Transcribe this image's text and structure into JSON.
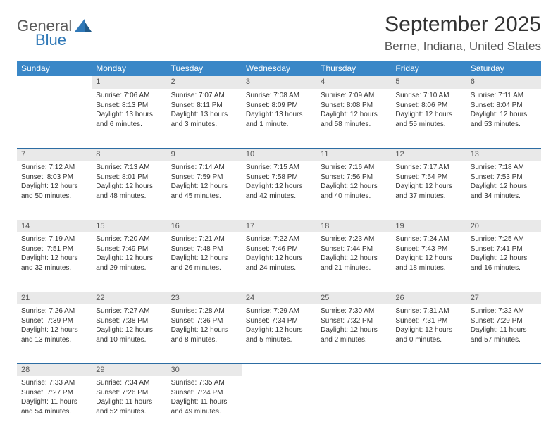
{
  "brand": {
    "word1": "General",
    "word2": "Blue"
  },
  "title": "September 2025",
  "location": "Berne, Indiana, United States",
  "colors": {
    "header_bg": "#3a87c7",
    "header_text": "#ffffff",
    "daynum_bg": "#e9e9e9",
    "row_border": "#2d6da3",
    "text": "#333333",
    "logo_gray": "#5a5a5a",
    "logo_blue": "#2f78b7"
  },
  "daysOfWeek": [
    "Sunday",
    "Monday",
    "Tuesday",
    "Wednesday",
    "Thursday",
    "Friday",
    "Saturday"
  ],
  "weeks": [
    [
      {
        "num": "",
        "lines": []
      },
      {
        "num": "1",
        "lines": [
          "Sunrise: 7:06 AM",
          "Sunset: 8:13 PM",
          "Daylight: 13 hours and 6 minutes."
        ]
      },
      {
        "num": "2",
        "lines": [
          "Sunrise: 7:07 AM",
          "Sunset: 8:11 PM",
          "Daylight: 13 hours and 3 minutes."
        ]
      },
      {
        "num": "3",
        "lines": [
          "Sunrise: 7:08 AM",
          "Sunset: 8:09 PM",
          "Daylight: 13 hours and 1 minute."
        ]
      },
      {
        "num": "4",
        "lines": [
          "Sunrise: 7:09 AM",
          "Sunset: 8:08 PM",
          "Daylight: 12 hours and 58 minutes."
        ]
      },
      {
        "num": "5",
        "lines": [
          "Sunrise: 7:10 AM",
          "Sunset: 8:06 PM",
          "Daylight: 12 hours and 55 minutes."
        ]
      },
      {
        "num": "6",
        "lines": [
          "Sunrise: 7:11 AM",
          "Sunset: 8:04 PM",
          "Daylight: 12 hours and 53 minutes."
        ]
      }
    ],
    [
      {
        "num": "7",
        "lines": [
          "Sunrise: 7:12 AM",
          "Sunset: 8:03 PM",
          "Daylight: 12 hours and 50 minutes."
        ]
      },
      {
        "num": "8",
        "lines": [
          "Sunrise: 7:13 AM",
          "Sunset: 8:01 PM",
          "Daylight: 12 hours and 48 minutes."
        ]
      },
      {
        "num": "9",
        "lines": [
          "Sunrise: 7:14 AM",
          "Sunset: 7:59 PM",
          "Daylight: 12 hours and 45 minutes."
        ]
      },
      {
        "num": "10",
        "lines": [
          "Sunrise: 7:15 AM",
          "Sunset: 7:58 PM",
          "Daylight: 12 hours and 42 minutes."
        ]
      },
      {
        "num": "11",
        "lines": [
          "Sunrise: 7:16 AM",
          "Sunset: 7:56 PM",
          "Daylight: 12 hours and 40 minutes."
        ]
      },
      {
        "num": "12",
        "lines": [
          "Sunrise: 7:17 AM",
          "Sunset: 7:54 PM",
          "Daylight: 12 hours and 37 minutes."
        ]
      },
      {
        "num": "13",
        "lines": [
          "Sunrise: 7:18 AM",
          "Sunset: 7:53 PM",
          "Daylight: 12 hours and 34 minutes."
        ]
      }
    ],
    [
      {
        "num": "14",
        "lines": [
          "Sunrise: 7:19 AM",
          "Sunset: 7:51 PM",
          "Daylight: 12 hours and 32 minutes."
        ]
      },
      {
        "num": "15",
        "lines": [
          "Sunrise: 7:20 AM",
          "Sunset: 7:49 PM",
          "Daylight: 12 hours and 29 minutes."
        ]
      },
      {
        "num": "16",
        "lines": [
          "Sunrise: 7:21 AM",
          "Sunset: 7:48 PM",
          "Daylight: 12 hours and 26 minutes."
        ]
      },
      {
        "num": "17",
        "lines": [
          "Sunrise: 7:22 AM",
          "Sunset: 7:46 PM",
          "Daylight: 12 hours and 24 minutes."
        ]
      },
      {
        "num": "18",
        "lines": [
          "Sunrise: 7:23 AM",
          "Sunset: 7:44 PM",
          "Daylight: 12 hours and 21 minutes."
        ]
      },
      {
        "num": "19",
        "lines": [
          "Sunrise: 7:24 AM",
          "Sunset: 7:43 PM",
          "Daylight: 12 hours and 18 minutes."
        ]
      },
      {
        "num": "20",
        "lines": [
          "Sunrise: 7:25 AM",
          "Sunset: 7:41 PM",
          "Daylight: 12 hours and 16 minutes."
        ]
      }
    ],
    [
      {
        "num": "21",
        "lines": [
          "Sunrise: 7:26 AM",
          "Sunset: 7:39 PM",
          "Daylight: 12 hours and 13 minutes."
        ]
      },
      {
        "num": "22",
        "lines": [
          "Sunrise: 7:27 AM",
          "Sunset: 7:38 PM",
          "Daylight: 12 hours and 10 minutes."
        ]
      },
      {
        "num": "23",
        "lines": [
          "Sunrise: 7:28 AM",
          "Sunset: 7:36 PM",
          "Daylight: 12 hours and 8 minutes."
        ]
      },
      {
        "num": "24",
        "lines": [
          "Sunrise: 7:29 AM",
          "Sunset: 7:34 PM",
          "Daylight: 12 hours and 5 minutes."
        ]
      },
      {
        "num": "25",
        "lines": [
          "Sunrise: 7:30 AM",
          "Sunset: 7:32 PM",
          "Daylight: 12 hours and 2 minutes."
        ]
      },
      {
        "num": "26",
        "lines": [
          "Sunrise: 7:31 AM",
          "Sunset: 7:31 PM",
          "Daylight: 12 hours and 0 minutes."
        ]
      },
      {
        "num": "27",
        "lines": [
          "Sunrise: 7:32 AM",
          "Sunset: 7:29 PM",
          "Daylight: 11 hours and 57 minutes."
        ]
      }
    ],
    [
      {
        "num": "28",
        "lines": [
          "Sunrise: 7:33 AM",
          "Sunset: 7:27 PM",
          "Daylight: 11 hours and 54 minutes."
        ]
      },
      {
        "num": "29",
        "lines": [
          "Sunrise: 7:34 AM",
          "Sunset: 7:26 PM",
          "Daylight: 11 hours and 52 minutes."
        ]
      },
      {
        "num": "30",
        "lines": [
          "Sunrise: 7:35 AM",
          "Sunset: 7:24 PM",
          "Daylight: 11 hours and 49 minutes."
        ]
      },
      {
        "num": "",
        "lines": []
      },
      {
        "num": "",
        "lines": []
      },
      {
        "num": "",
        "lines": []
      },
      {
        "num": "",
        "lines": []
      }
    ]
  ]
}
